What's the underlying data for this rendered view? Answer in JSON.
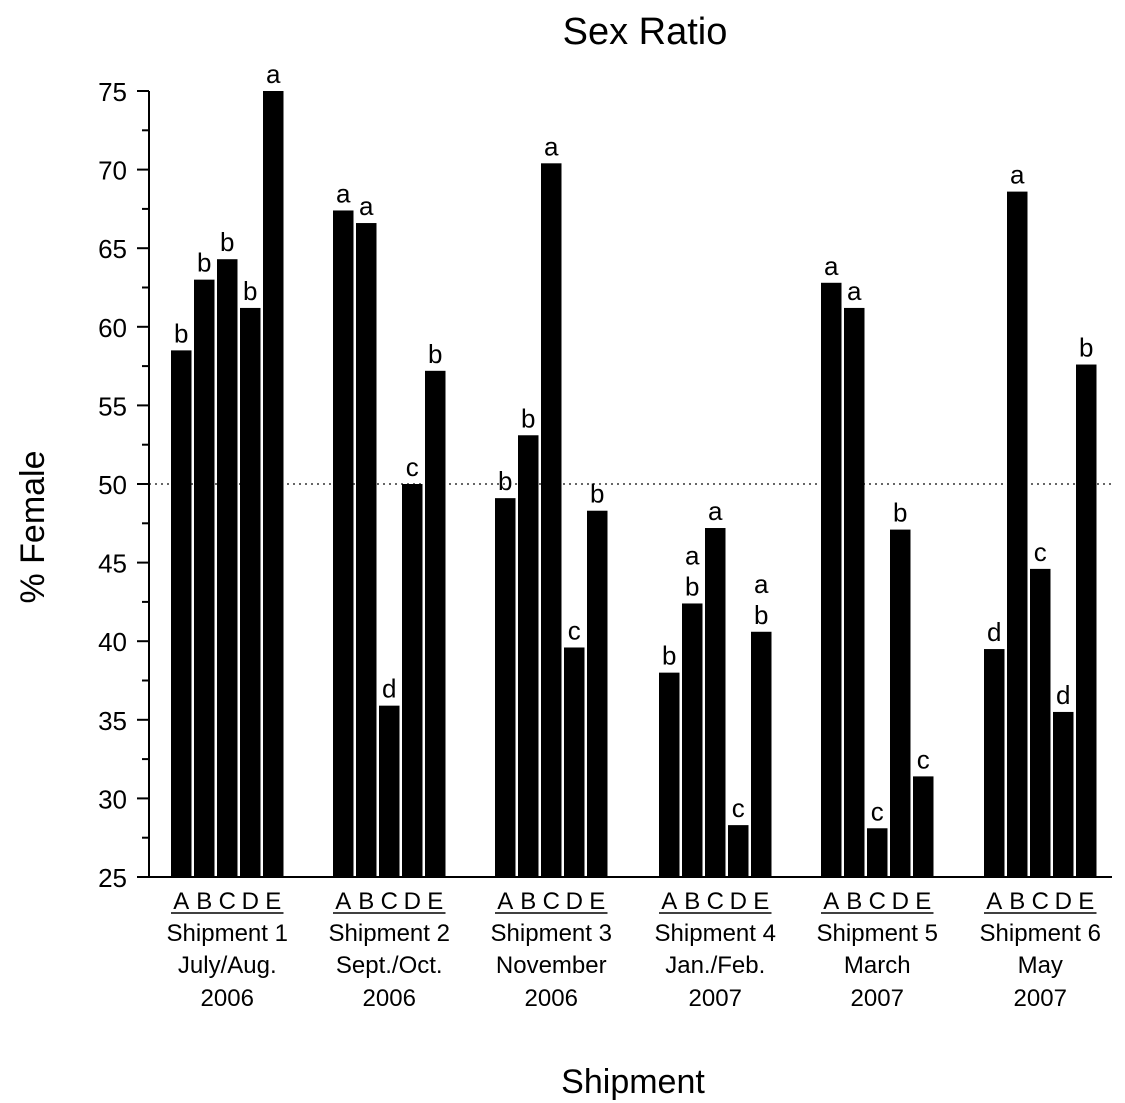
{
  "chart_data": {
    "type": "bar",
    "title": "Sex Ratio",
    "xlabel": "Shipment",
    "ylabel": "% Female",
    "ylim": [
      25,
      75
    ],
    "yticks": [
      "25",
      "30",
      "35",
      "40",
      "45",
      "50",
      "55",
      "60",
      "65",
      "70",
      "75"
    ],
    "reference_line": {
      "y": 50,
      "style": "dotted"
    },
    "bar_labels": [
      "A",
      "B",
      "C",
      "D",
      "E"
    ],
    "groups": [
      {
        "name": "Shipment 1",
        "period": "July/Aug.",
        "year": "2006",
        "values": [
          58.5,
          63.0,
          64.3,
          61.2,
          75.0
        ],
        "letters": [
          "b",
          "b",
          "b",
          "b",
          "a"
        ]
      },
      {
        "name": "Shipment 2",
        "period": "Sept./Oct.",
        "year": "2006",
        "values": [
          67.4,
          66.6,
          35.9,
          50.0,
          57.2
        ],
        "letters": [
          "a",
          "a",
          "d",
          "c",
          "b"
        ]
      },
      {
        "name": "Shipment 3",
        "period": "November",
        "year": "2006",
        "values": [
          49.1,
          53.1,
          70.4,
          39.6,
          48.3
        ],
        "letters": [
          "b",
          "b",
          "a",
          "c",
          "b"
        ]
      },
      {
        "name": "Shipment 4",
        "period": "Jan./Feb.",
        "year": "2007",
        "values": [
          38.0,
          42.4,
          47.2,
          28.3,
          40.6
        ],
        "letters": [
          "b",
          "a\nb",
          "a",
          "c",
          "a\nb"
        ]
      },
      {
        "name": "Shipment 5",
        "period": "March",
        "year": "2007",
        "values": [
          62.8,
          61.2,
          28.1,
          47.1,
          31.4
        ],
        "letters": [
          "a",
          "a",
          "c",
          "b",
          "c"
        ]
      },
      {
        "name": "Shipment 6",
        "period": "May",
        "year": "2007",
        "values": [
          39.5,
          68.6,
          44.6,
          35.5,
          57.6
        ],
        "letters": [
          "d",
          "a",
          "c",
          "d",
          "b"
        ]
      }
    ]
  }
}
